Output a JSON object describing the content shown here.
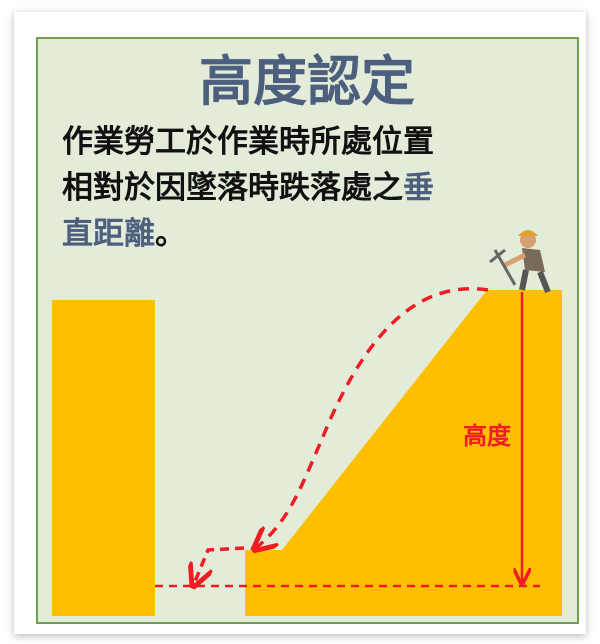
{
  "title": "高度認定",
  "description": {
    "line1": "作業勞工於作業時所處位置",
    "line2": "相對於因墜落時跌落處之",
    "line2_highlight": "垂",
    "line3_highlight": "直距離",
    "line3": "。"
  },
  "height_label": "高度"
}
